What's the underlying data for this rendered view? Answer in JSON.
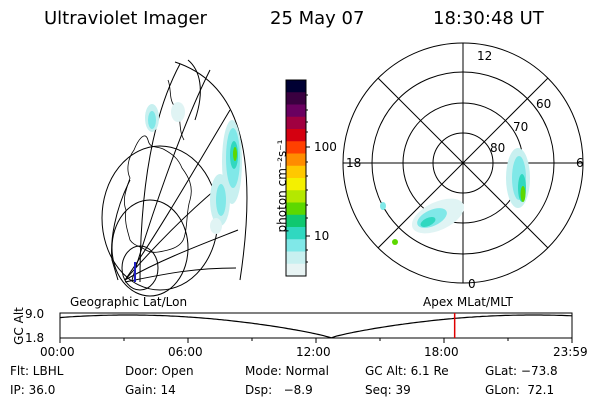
{
  "header": {
    "instrument": "Ultraviolet Imager",
    "date": "25 May 07",
    "time": "18:30:48 UT"
  },
  "left_panel": {
    "label": "Geographic Lat/Lon"
  },
  "colorbar": {
    "unit_label": "photon cm⁻²s⁻¹",
    "ticks": [
      "100",
      "10"
    ],
    "colors": [
      "#000033",
      "#3a0040",
      "#6a0060",
      "#a00040",
      "#d40010",
      "#ff4000",
      "#ff8c00",
      "#ffc800",
      "#f4f000",
      "#b4e800",
      "#5cd800",
      "#10c870",
      "#30d8c0",
      "#80e8e8",
      "#c8f0f0",
      "#e8f4f4"
    ]
  },
  "right_panel": {
    "label": "Apex MLat/MLT",
    "mlt_labels": [
      "12",
      "18",
      "6",
      "0"
    ],
    "mlat_labels": [
      "60",
      "70",
      "80"
    ]
  },
  "altitude_plot": {
    "axis_title": "GC Alt",
    "y_ticks": [
      "9.0",
      "1.8"
    ],
    "x_ticks": [
      "00:00",
      "06:00",
      "12:00",
      "18:00",
      "23:59"
    ],
    "current_time_marker_hours": 18.5,
    "marker_color": "#e00000"
  },
  "footer": {
    "row1": {
      "filter": "Flt: LBHL",
      "door": "Door: Open",
      "mode": "Mode: Normal",
      "gc_alt": "GC Alt: 6.1 Re",
      "glat": "GLat: −73.8"
    },
    "row2": {
      "ip": "IP: 36.0",
      "gain": "Gain: 14",
      "dsp": "Dsp:   −8.9",
      "seq": "Seq: 39",
      "glon": "GLon:  72.1"
    }
  }
}
